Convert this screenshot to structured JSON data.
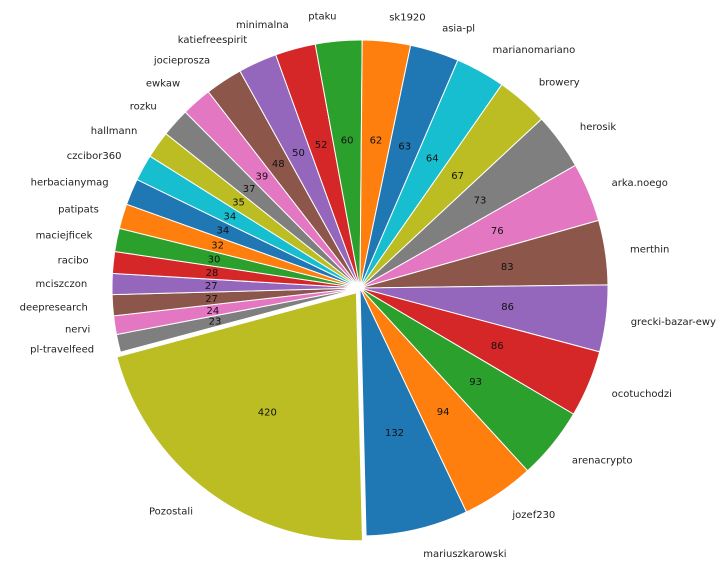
{
  "chart_data": {
    "type": "pie",
    "categories": [
      "pl-travelfeed",
      "nervi",
      "deepresearch",
      "mciszczon",
      "racibo",
      "maciejficek",
      "patipats",
      "herbacianymag",
      "czcibor360",
      "hallmann",
      "rozku",
      "ewkaw",
      "jocieprosza",
      "katiefreespirit",
      "minimalna",
      "ptaku",
      "sk1920",
      "asia-pl",
      "marianomariano",
      "browery",
      "herosik",
      "arka.noego",
      "merthin",
      "grecki-bazar-ewy",
      "ocotuchodzi",
      "arenacrypto",
      "jozef230",
      "mariuszkarowski",
      "Pozostali"
    ],
    "values": [
      23,
      24,
      27,
      27,
      28,
      30,
      32,
      34,
      34,
      35,
      37,
      39,
      48,
      50,
      52,
      60,
      62,
      63,
      64,
      67,
      73,
      76,
      83,
      86,
      86,
      93,
      94,
      132,
      420
    ],
    "value_labels": [
      "23",
      "24",
      "27",
      "27",
      "28",
      "30",
      "32",
      "34",
      "34",
      "35",
      "37",
      "39",
      "48",
      "50",
      "52",
      "60",
      "62",
      "63",
      "64",
      "67",
      "73",
      "76",
      "83",
      "86",
      "86",
      "93",
      "94",
      "132",
      "420"
    ],
    "colors": [
      "#7f7f7f",
      "#e377c2",
      "#8c564b",
      "#9467bd",
      "#d62728",
      "#2ca02c",
      "#ff7f0e",
      "#1f77b4",
      "#17becf",
      "#bcbd22",
      "#7f7f7f",
      "#e377c2",
      "#8c564b",
      "#9467bd",
      "#d62728",
      "#2ca02c",
      "#ff7f0e",
      "#1f77b4",
      "#17becf",
      "#bcbd22",
      "#7f7f7f",
      "#e377c2",
      "#8c564b",
      "#9467bd",
      "#d62728",
      "#2ca02c",
      "#ff7f0e",
      "#1f77b4",
      "#bcbd22"
    ],
    "exploded": "Pozostali",
    "start_angle_deg": 195,
    "direction": "clockwise",
    "title": ""
  }
}
